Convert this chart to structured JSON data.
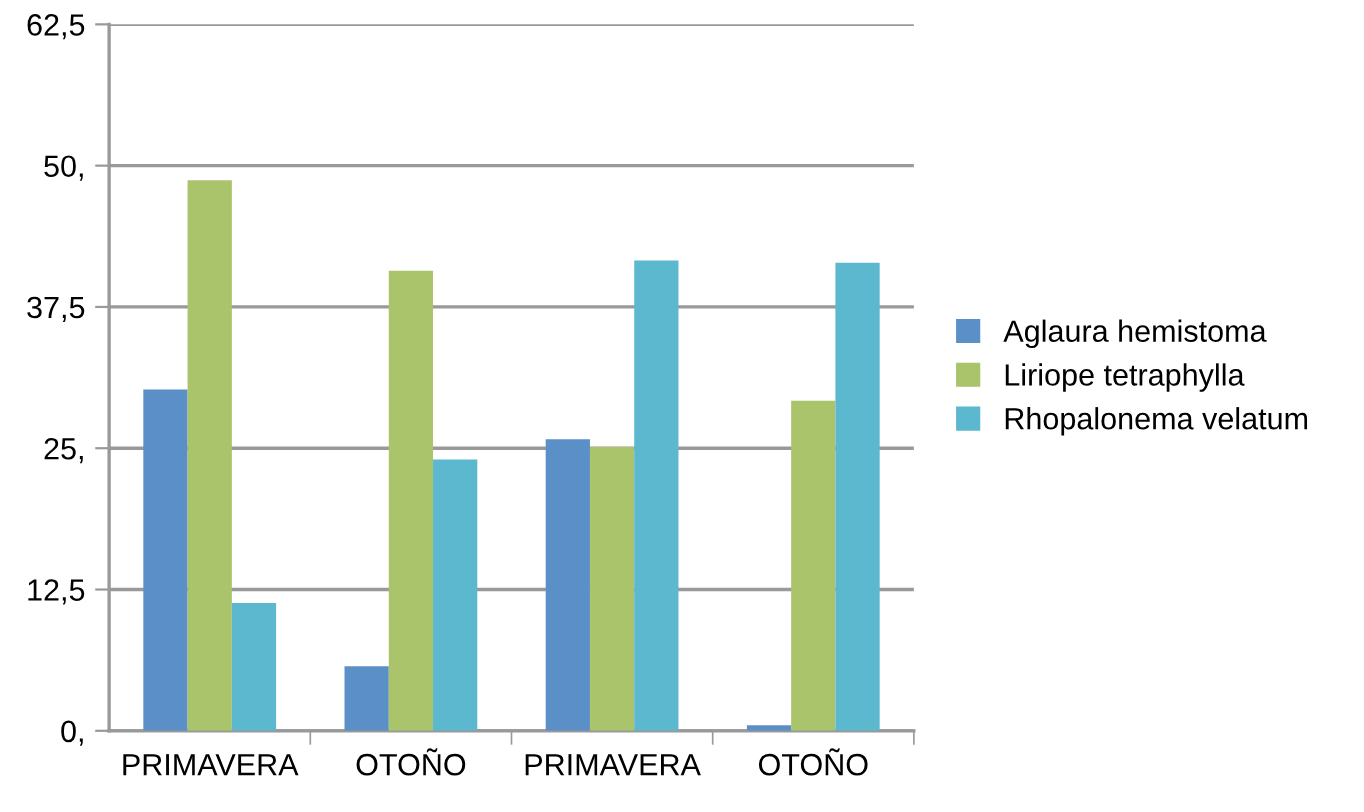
{
  "chart_data": {
    "type": "bar",
    "categories": [
      "PRIMAVERA",
      "OTOÑO",
      "PRIMAVERA",
      "OTOÑO"
    ],
    "series": [
      {
        "name": "Aglaura hemistoma",
        "color": "#5b8fc7",
        "values": [
          30.2,
          5.7,
          25.8,
          0.5
        ]
      },
      {
        "name": "Liriope tetraphylla",
        "color": "#a9c46a",
        "values": [
          48.7,
          40.7,
          25.1,
          29.2
        ]
      },
      {
        "name": "Rhopalonema velatum",
        "color": "#5bb8cf",
        "values": [
          11.3,
          24.0,
          41.6,
          41.4
        ]
      }
    ],
    "ylim": [
      0,
      62.5
    ],
    "yticks": [
      {
        "value": 0,
        "label": "0,"
      },
      {
        "value": 12.5,
        "label": "12,5"
      },
      {
        "value": 25,
        "label": "25,"
      },
      {
        "value": 37.5,
        "label": "37,5"
      },
      {
        "value": 50,
        "label": "50,"
      },
      {
        "value": 62.5,
        "label": "62,5"
      }
    ],
    "grid": "y",
    "legend": "right"
  }
}
